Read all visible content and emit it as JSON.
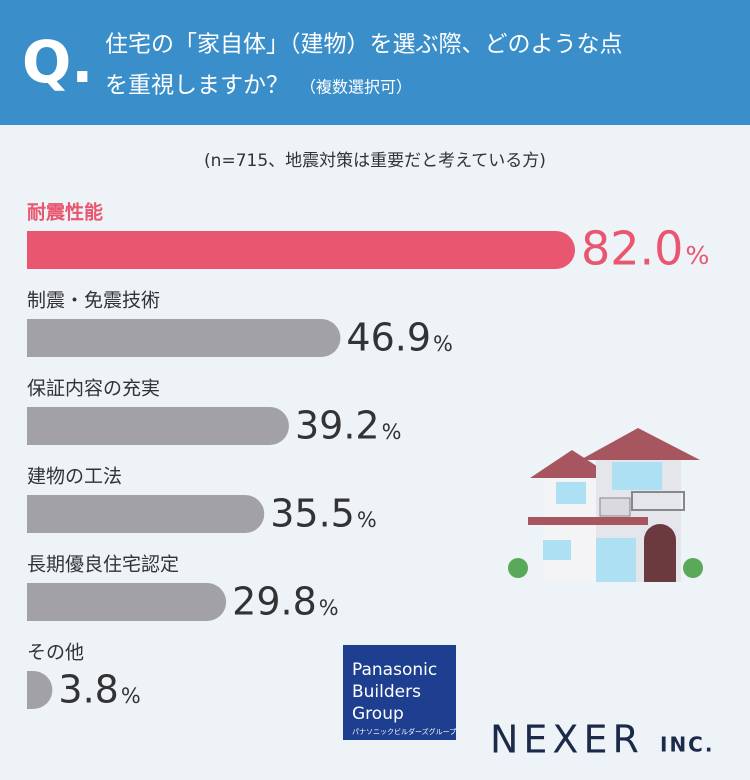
{
  "chart_data": {
    "type": "bar",
    "q_mark": "Q.",
    "title_lines": [
      "住宅の「家自体」（建物）を選ぶ際、どのような点",
      "を重視しますか？"
    ],
    "title_note": "（複数選択可）",
    "subtitle": "(n=715、地震対策は重要だと考えている方)",
    "categories": [
      "耐震性能",
      "制震・免震技術",
      "保証内容の充実",
      "建物の工法",
      "長期優良住宅認定",
      "その他"
    ],
    "values": [
      82.0,
      46.9,
      39.2,
      35.5,
      29.8,
      3.8
    ],
    "value_labels": [
      "82.0",
      "46.9",
      "39.2",
      "35.5",
      "29.8",
      "3.8"
    ],
    "unit": "%",
    "colors": [
      "#e9566f",
      "#a2a2a6",
      "#a2a2a6",
      "#a2a2a6",
      "#a2a2a6",
      "#a2a2a6"
    ],
    "label_colors": [
      "#e9566f",
      "#333333",
      "#333333",
      "#333333",
      "#333333",
      "#333333"
    ]
  },
  "logos": {
    "panasonic": [
      "Panasonic",
      "Builders",
      "Group"
    ],
    "panasonic_kana": "パナソニックビルダーズグループ",
    "nexer": "NEXER",
    "nexer_suffix": "INC."
  }
}
